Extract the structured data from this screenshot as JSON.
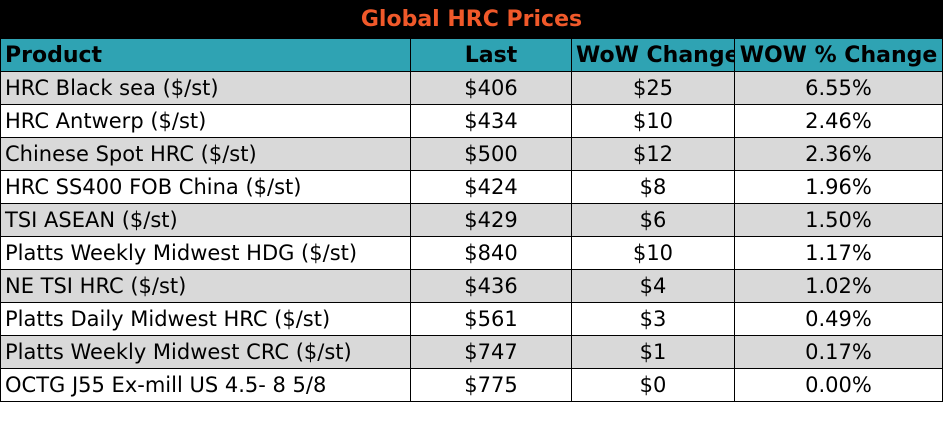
{
  "title": "Global HRC Prices",
  "colors": {
    "title_bg": "#000000",
    "title_text": "#f0592a",
    "header_bg": "#2fa3b3",
    "shaded_row": "#d9d9d9",
    "plain_row": "#ffffff"
  },
  "columns": [
    "Product",
    "Last",
    "WoW Change",
    "WOW % Change"
  ],
  "rows": [
    {
      "product": "HRC Black sea ($/st)",
      "last": "$406",
      "wow_change": "$25",
      "wow_pct": "6.55%"
    },
    {
      "product": "HRC Antwerp ($/st)",
      "last": "$434",
      "wow_change": "$10",
      "wow_pct": "2.46%"
    },
    {
      "product": "Chinese Spot HRC ($/st)",
      "last": "$500",
      "wow_change": "$12",
      "wow_pct": "2.36%"
    },
    {
      "product": "HRC SS400 FOB China ($/st)",
      "last": "$424",
      "wow_change": "$8",
      "wow_pct": "1.96%"
    },
    {
      "product": "TSI ASEAN ($/st)",
      "last": "$429",
      "wow_change": "$6",
      "wow_pct": "1.50%"
    },
    {
      "product": "Platts Weekly Midwest HDG ($/st)",
      "last": "$840",
      "wow_change": "$10",
      "wow_pct": "1.17%"
    },
    {
      "product": "NE TSI HRC ($/st)",
      "last": "$436",
      "wow_change": "$4",
      "wow_pct": "1.02%"
    },
    {
      "product": "Platts Daily Midwest HRC ($/st)",
      "last": "$561",
      "wow_change": "$3",
      "wow_pct": "0.49%"
    },
    {
      "product": "Platts Weekly Midwest CRC ($/st)",
      "last": "$747",
      "wow_change": "$1",
      "wow_pct": "0.17%"
    },
    {
      "product": "OCTG J55 Ex-mill US 4.5- 8 5/8",
      "last": "$775",
      "wow_change": "$0",
      "wow_pct": "0.00%"
    }
  ]
}
